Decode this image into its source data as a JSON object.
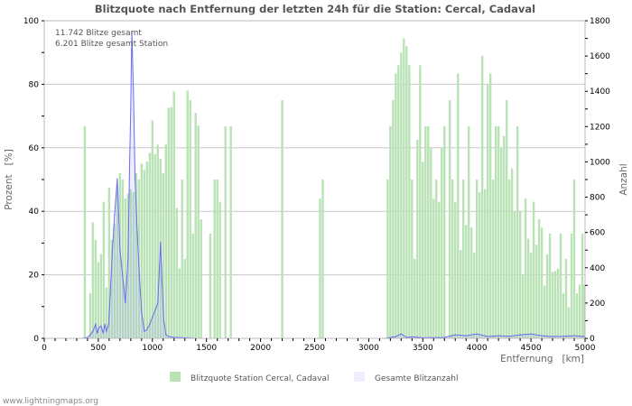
{
  "chart_data": {
    "type": "bar",
    "title": "Blitzquote nach Entfernung der letzten 24h für die Station: Cercal, Cadaval",
    "xlabel": "Entfernung   [km]",
    "ylabel": "Prozent   [%]",
    "y2label": "Anzahl",
    "xlim": [
      0,
      5000
    ],
    "ylim": [
      0,
      100
    ],
    "y2lim": [
      0,
      1800
    ],
    "bin_km": 25,
    "x_ticks": [
      0,
      500,
      1000,
      1500,
      2000,
      2500,
      3000,
      3500,
      4000,
      4500,
      5000
    ],
    "y_ticks": [
      0,
      20,
      40,
      60,
      80,
      100
    ],
    "y2_ticks": [
      0,
      200,
      400,
      600,
      800,
      1000,
      1200,
      1400,
      1600,
      1800
    ],
    "grid": true,
    "annotations": [
      "11.742 Blitze gesamt",
      "6.201 Blitze gesamt Station"
    ],
    "legend": {
      "placement": "bottom",
      "items": [
        "Blitzquote Station Cercal, Cadaval",
        "Gesamte Blitzanzahl"
      ]
    },
    "series": [
      {
        "name": "Blitzquote Station Cercal, Cadaval",
        "axis": "left",
        "color": "#b9e2b5",
        "points": [
          [
            375,
            66.8
          ],
          [
            425,
            14.2
          ],
          [
            450,
            36.5
          ],
          [
            475,
            31
          ],
          [
            500,
            24
          ],
          [
            525,
            26.5
          ],
          [
            550,
            43
          ],
          [
            575,
            16
          ],
          [
            600,
            47.5
          ],
          [
            625,
            31
          ],
          [
            650,
            36
          ],
          [
            675,
            47
          ],
          [
            700,
            52
          ],
          [
            725,
            50
          ],
          [
            750,
            44
          ],
          [
            775,
            45.5
          ],
          [
            800,
            47
          ],
          [
            825,
            46
          ],
          [
            850,
            52
          ],
          [
            875,
            50
          ],
          [
            900,
            55
          ],
          [
            925,
            53
          ],
          [
            950,
            55.6
          ],
          [
            975,
            58.4
          ],
          [
            1000,
            68.6
          ],
          [
            1025,
            58
          ],
          [
            1050,
            61
          ],
          [
            1075,
            56.5
          ],
          [
            1100,
            52
          ],
          [
            1125,
            61
          ],
          [
            1150,
            72.6
          ],
          [
            1175,
            72.8
          ],
          [
            1200,
            77.7
          ],
          [
            1225,
            41
          ],
          [
            1250,
            22
          ],
          [
            1275,
            50
          ],
          [
            1300,
            25
          ],
          [
            1325,
            78
          ],
          [
            1350,
            75
          ],
          [
            1375,
            33
          ],
          [
            1400,
            71
          ],
          [
            1425,
            67
          ],
          [
            1450,
            37.5
          ],
          [
            1535,
            33
          ],
          [
            1575,
            50
          ],
          [
            1600,
            50
          ],
          [
            1625,
            43
          ],
          [
            1675,
            66.8
          ],
          [
            1725,
            66.8
          ],
          [
            2200,
            75
          ],
          [
            2550,
            44
          ],
          [
            2575,
            50
          ],
          [
            3175,
            50
          ],
          [
            3200,
            66.8
          ],
          [
            3225,
            75
          ],
          [
            3250,
            83.4
          ],
          [
            3275,
            86
          ],
          [
            3300,
            90
          ],
          [
            3325,
            94.5
          ],
          [
            3350,
            92
          ],
          [
            3375,
            86
          ],
          [
            3400,
            50
          ],
          [
            3425,
            25
          ],
          [
            3450,
            62.5
          ],
          [
            3475,
            86
          ],
          [
            3500,
            55.6
          ],
          [
            3525,
            66.8
          ],
          [
            3550,
            66.8
          ],
          [
            3575,
            60
          ],
          [
            3600,
            44
          ],
          [
            3625,
            50
          ],
          [
            3650,
            43
          ],
          [
            3675,
            60
          ],
          [
            3700,
            66.8
          ],
          [
            3750,
            75
          ],
          [
            3775,
            50
          ],
          [
            3800,
            43
          ],
          [
            3825,
            83.4
          ],
          [
            3850,
            27.8
          ],
          [
            3875,
            50
          ],
          [
            3900,
            35.7
          ],
          [
            3925,
            66.8
          ],
          [
            3950,
            35
          ],
          [
            3975,
            27
          ],
          [
            4000,
            50
          ],
          [
            4025,
            46
          ],
          [
            4050,
            89
          ],
          [
            4075,
            47
          ],
          [
            4100,
            80
          ],
          [
            4125,
            83.4
          ],
          [
            4150,
            50
          ],
          [
            4175,
            66.8
          ],
          [
            4200,
            66.8
          ],
          [
            4225,
            60
          ],
          [
            4250,
            63.7
          ],
          [
            4275,
            75
          ],
          [
            4300,
            50
          ],
          [
            4325,
            53.5
          ],
          [
            4350,
            40
          ],
          [
            4375,
            66.8
          ],
          [
            4400,
            40
          ],
          [
            4425,
            19.8
          ],
          [
            4450,
            44
          ],
          [
            4475,
            31.4
          ],
          [
            4500,
            27
          ],
          [
            4525,
            43
          ],
          [
            4550,
            29.5
          ],
          [
            4575,
            37.5
          ],
          [
            4600,
            34.8
          ],
          [
            4625,
            16.6
          ],
          [
            4650,
            26.4
          ],
          [
            4675,
            33
          ],
          [
            4700,
            20.9
          ],
          [
            4725,
            21.2
          ],
          [
            4750,
            22
          ],
          [
            4775,
            33
          ],
          [
            4800,
            14.2
          ],
          [
            4825,
            25
          ],
          [
            4850,
            9.8
          ],
          [
            4875,
            33
          ],
          [
            4900,
            50
          ],
          [
            4925,
            14.2
          ],
          [
            4950,
            16.9
          ],
          [
            4975,
            33
          ],
          [
            4990,
            16.9
          ]
        ]
      },
      {
        "name": "Gesamte Blitzanzahl",
        "axis": "right",
        "color": "#6b6bf5",
        "points": [
          [
            350,
            0
          ],
          [
            400,
            5
          ],
          [
            425,
            20
          ],
          [
            450,
            40
          ],
          [
            475,
            80
          ],
          [
            490,
            30
          ],
          [
            505,
            60
          ],
          [
            525,
            70
          ],
          [
            545,
            30
          ],
          [
            560,
            80
          ],
          [
            575,
            40
          ],
          [
            595,
            80
          ],
          [
            610,
            250
          ],
          [
            630,
            500
          ],
          [
            650,
            700
          ],
          [
            675,
            904
          ],
          [
            700,
            500
          ],
          [
            725,
            350
          ],
          [
            750,
            200
          ],
          [
            775,
            450
          ],
          [
            790,
            1000
          ],
          [
            800,
            1300
          ],
          [
            810,
            1740
          ],
          [
            825,
            1400
          ],
          [
            840,
            900
          ],
          [
            860,
            600
          ],
          [
            880,
            350
          ],
          [
            900,
            150
          ],
          [
            925,
            40
          ],
          [
            950,
            50
          ],
          [
            975,
            80
          ],
          [
            1000,
            120
          ],
          [
            1025,
            160
          ],
          [
            1050,
            200
          ],
          [
            1075,
            545
          ],
          [
            1090,
            300
          ],
          [
            1105,
            100
          ],
          [
            1125,
            20
          ],
          [
            1150,
            10
          ],
          [
            1200,
            5
          ],
          [
            1300,
            3
          ],
          [
            1400,
            0
          ],
          [
            3150,
            0
          ],
          [
            3250,
            10
          ],
          [
            3300,
            25
          ],
          [
            3350,
            5
          ],
          [
            3400,
            8
          ],
          [
            3500,
            3
          ],
          [
            3700,
            5
          ],
          [
            3800,
            20
          ],
          [
            3900,
            15
          ],
          [
            4000,
            25
          ],
          [
            4100,
            10
          ],
          [
            4200,
            15
          ],
          [
            4300,
            12
          ],
          [
            4400,
            20
          ],
          [
            4500,
            25
          ],
          [
            4600,
            15
          ],
          [
            4700,
            10
          ],
          [
            4800,
            12
          ],
          [
            4900,
            15
          ],
          [
            5000,
            10
          ]
        ]
      }
    ]
  },
  "footer": "www.lightningmaps.org"
}
